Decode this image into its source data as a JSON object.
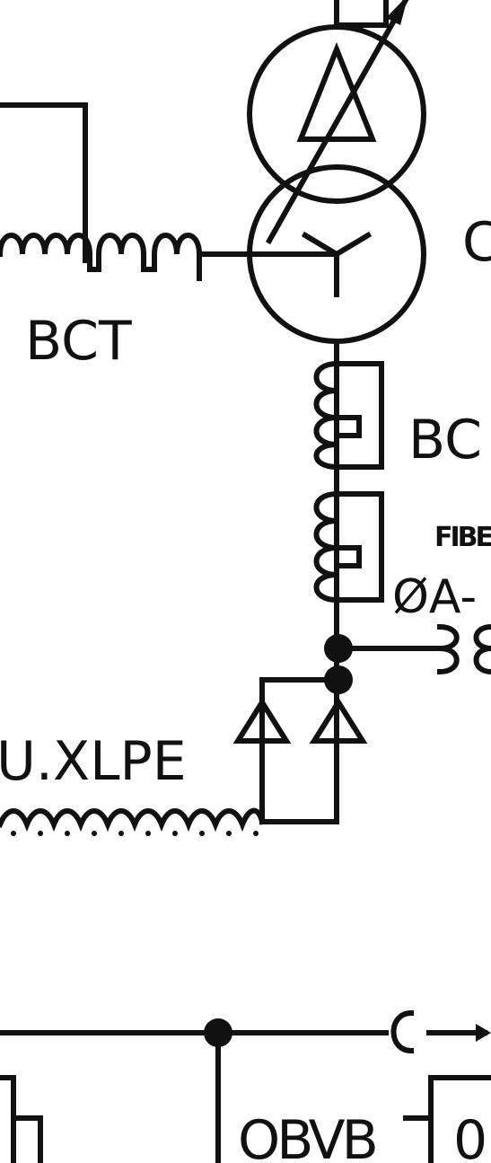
{
  "labels": {
    "bct_left": "BCT",
    "bct_right": "BC",
    "fiber": "FIBE",
    "phase": "ØA-",
    "cable": "U.XLPE",
    "obvb": "OBVB",
    "edge_letter_top": "C",
    "edge_letter_bottom": "0"
  },
  "colors": {
    "ink": "#111111",
    "background": "#ffffff"
  },
  "symbols": [
    "transformer-delta-winding-icon",
    "transformer-wye-winding-icon",
    "tap-changer-arrow-icon",
    "bushing-ct-coil-icon",
    "surge-arrester-icon",
    "cable-termination-icon",
    "junction-dot-icon"
  ]
}
